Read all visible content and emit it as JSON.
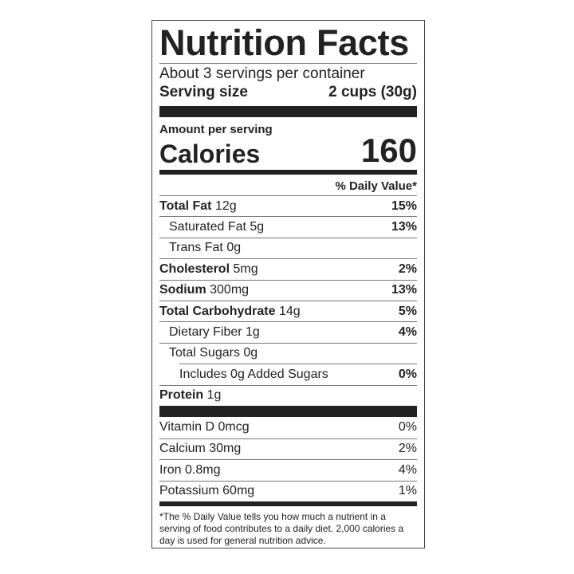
{
  "title": "Nutrition Facts",
  "servings_per_container": "About 3 servings per container",
  "serving_size": {
    "label": "Serving size",
    "value": "2 cups (30g)"
  },
  "amount_per_serving": "Amount per serving",
  "calories": {
    "label": "Calories",
    "value": "160"
  },
  "daily_value_header": "% Daily Value*",
  "nutrients": [
    {
      "name": "Total Fat",
      "amount": "12g",
      "dv": "15%"
    },
    {
      "name": "Saturated Fat",
      "amount": "5g",
      "dv": "13%"
    },
    {
      "name": "Trans Fat",
      "amount": "0g",
      "dv": ""
    },
    {
      "name": "Cholesterol",
      "amount": "5mg",
      "dv": "2%"
    },
    {
      "name": "Sodium",
      "amount": "300mg",
      "dv": "13%"
    },
    {
      "name": "Total Carbohydrate",
      "amount": "14g",
      "dv": "5%"
    },
    {
      "name": "Dietary Fiber",
      "amount": "1g",
      "dv": "4%"
    },
    {
      "name": "Total Sugars",
      "amount": "0g",
      "dv": ""
    },
    {
      "name": "Includes 0g Added Sugars",
      "amount": "",
      "dv": "0%"
    },
    {
      "name": "Protein",
      "amount": "1g",
      "dv": ""
    }
  ],
  "vitamins": [
    {
      "name": "Vitamin D 0mcg",
      "dv": "0%"
    },
    {
      "name": "Calcium 30mg",
      "dv": "2%"
    },
    {
      "name": "Iron 0.8mg",
      "dv": "4%"
    },
    {
      "name": "Potassium 60mg",
      "dv": "1%"
    }
  ],
  "footnote": "*The % Daily Value tells you how much a nutrient in a serving of food contributes to a daily diet. 2,000 calories a day is used for general nutrition advice."
}
